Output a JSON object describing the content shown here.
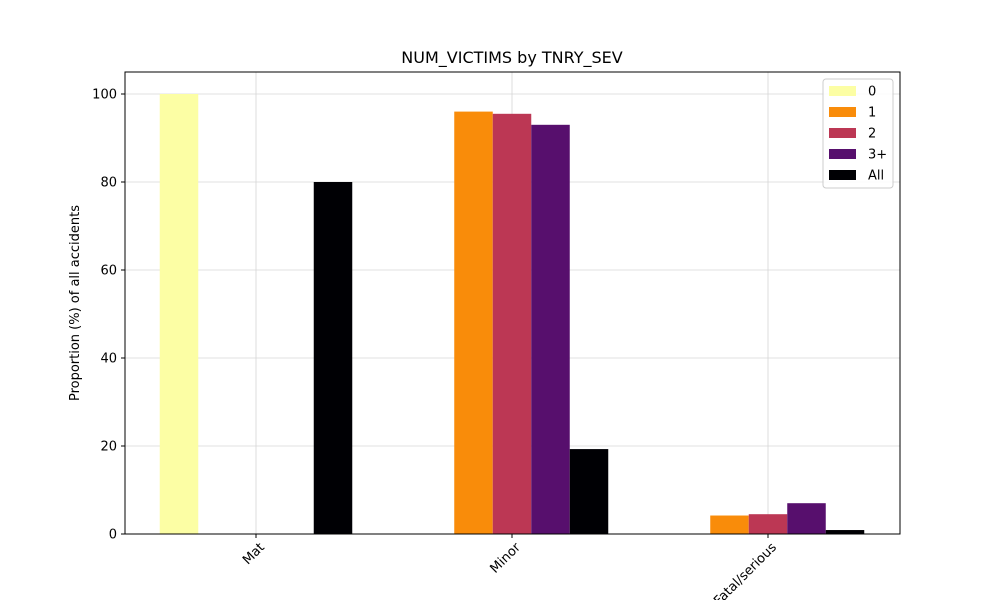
{
  "chart_data": {
    "type": "bar",
    "title": "NUM_VICTIMS by TNRY_SEV",
    "xlabel": "",
    "ylabel": "Proportion (%) of all accidents",
    "categories": [
      "Mat",
      "Minor",
      "Fatal/serious"
    ],
    "ylim": [
      0,
      105
    ],
    "yticks": [
      0,
      20,
      40,
      60,
      80,
      100
    ],
    "grid": true,
    "legend_position": "top-right",
    "series": [
      {
        "name": "0",
        "color": "#fcfea4",
        "values": [
          100,
          0,
          0
        ]
      },
      {
        "name": "1",
        "color": "#f98c0a",
        "values": [
          0,
          96,
          4.2
        ]
      },
      {
        "name": "2",
        "color": "#bc3754",
        "values": [
          0,
          95.5,
          4.5
        ]
      },
      {
        "name": "3+",
        "color": "#570f6d",
        "values": [
          0,
          93,
          7
        ]
      },
      {
        "name": "All",
        "color": "#000004",
        "values": [
          80,
          19.3,
          0.9
        ]
      }
    ]
  }
}
